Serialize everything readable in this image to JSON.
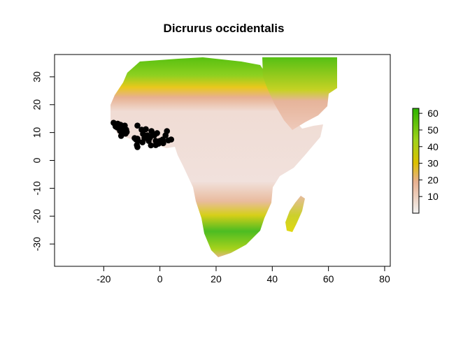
{
  "title": "Dicrurus occidentalis",
  "x_axis": {
    "ticks": [
      "-20",
      "0",
      "20",
      "40",
      "60",
      "80"
    ]
  },
  "y_axis": {
    "ticks": [
      "-30",
      "-20",
      "-10",
      "0",
      "10",
      "20",
      "30"
    ]
  },
  "legend": {
    "ticks": [
      "10",
      "20",
      "30",
      "40",
      "50",
      "60"
    ],
    "range": [
      0,
      63
    ],
    "colors": [
      "#f2f2f2",
      "#e8b090",
      "#dcc000",
      "#9ed21a",
      "#2db300"
    ]
  },
  "chart_data": {
    "type": "scatter",
    "title": "Dicrurus occidentalis",
    "xlim": [
      -37.5,
      82
    ],
    "ylim": [
      -38,
      38
    ],
    "background": "raster map of Africa with continuous color scale 0-63",
    "occurrences": [
      [
        -16.5,
        13.5
      ],
      [
        -16.0,
        13.0
      ],
      [
        -15.5,
        12.5
      ],
      [
        -15.0,
        13.2
      ],
      [
        -14.8,
        12.0
      ],
      [
        -14.5,
        11.5
      ],
      [
        -14.0,
        12.8
      ],
      [
        -13.5,
        11.0
      ],
      [
        -13.2,
        12.0
      ],
      [
        -13.0,
        10.5
      ],
      [
        -13.5,
        9.8
      ],
      [
        -12.8,
        11.8
      ],
      [
        -12.5,
        12.5
      ],
      [
        -12.0,
        11.0
      ],
      [
        -11.8,
        10.2
      ],
      [
        -13.8,
        8.8
      ],
      [
        -15.8,
        12.2
      ],
      [
        -15.2,
        11.8
      ],
      [
        -14.2,
        10.6
      ],
      [
        -12.2,
        9.6
      ],
      [
        -8.0,
        12.5
      ],
      [
        -9.0,
        8.0
      ],
      [
        -8.5,
        7.5
      ],
      [
        -8.0,
        7.8
      ],
      [
        -7.8,
        7.0
      ],
      [
        -8.2,
        5.5
      ],
      [
        -8.0,
        4.8
      ],
      [
        -6.5,
        11.0
      ],
      [
        -6.0,
        9.5
      ],
      [
        -5.5,
        8.0
      ],
      [
        -5.0,
        11.2
      ],
      [
        -4.5,
        9.0
      ],
      [
        -4.0,
        7.0
      ],
      [
        -3.5,
        8.2
      ],
      [
        -3.0,
        10.5
      ],
      [
        -2.5,
        9.5
      ],
      [
        -2.0,
        9.0
      ],
      [
        -1.5,
        7.0
      ],
      [
        -1.5,
        5.5
      ],
      [
        -1.0,
        9.8
      ],
      [
        -0.5,
        6.0
      ],
      [
        0.0,
        7.0
      ],
      [
        0.5,
        6.5
      ],
      [
        1.0,
        7.5
      ],
      [
        1.2,
        6.2
      ],
      [
        2.0,
        9.0
      ],
      [
        2.5,
        10.5
      ],
      [
        3.0,
        7.2
      ],
      [
        4.0,
        7.5
      ],
      [
        -6.2,
        6.5
      ],
      [
        -3.2,
        5.4
      ]
    ]
  }
}
